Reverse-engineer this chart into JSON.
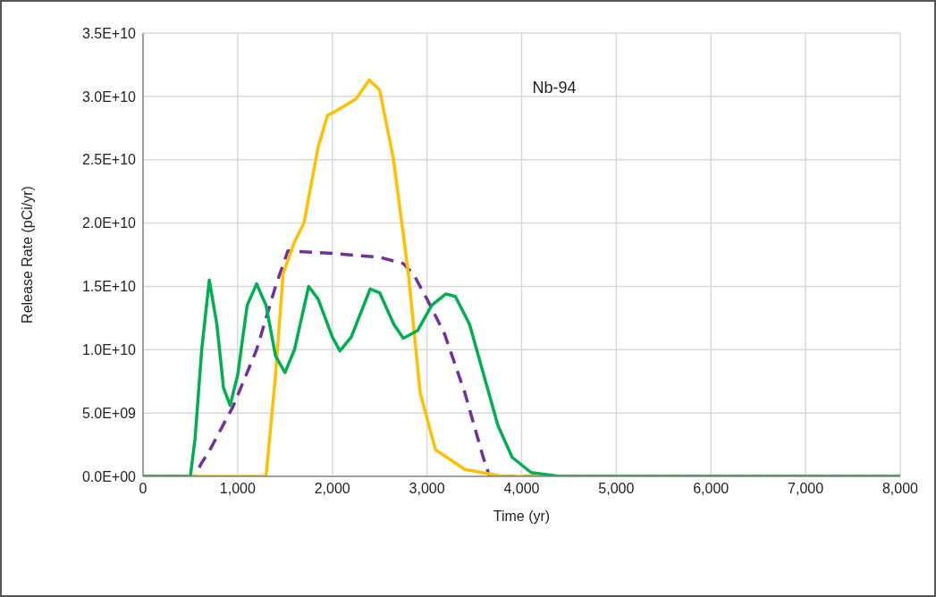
{
  "chart_data": {
    "type": "line",
    "title": "Nb-94",
    "xlabel": "Time (yr)",
    "ylabel": "Release Rate (pCi/yr)",
    "xlim": [
      0,
      8000
    ],
    "xticks": [
      {
        "value": 0,
        "label": "0"
      },
      {
        "value": 1000,
        "label": "1,000"
      },
      {
        "value": 2000,
        "label": "2,000"
      },
      {
        "value": 3000,
        "label": "3,000"
      },
      {
        "value": 4000,
        "label": "4,000"
      },
      {
        "value": 5000,
        "label": "5,000"
      },
      {
        "value": 6000,
        "label": "6,000"
      },
      {
        "value": 7000,
        "label": "7,000"
      },
      {
        "value": 8000,
        "label": "8,000"
      }
    ],
    "ylim": [
      0,
      35000000000.0
    ],
    "yticks": [
      {
        "value": 0,
        "label": "0.0E+00"
      },
      {
        "value": 5000000000.0,
        "label": "5.0E+09"
      },
      {
        "value": 10000000000.0,
        "label": "1.0E+10"
      },
      {
        "value": 15000000000.0,
        "label": "1.5E+10"
      },
      {
        "value": 20000000000.0,
        "label": "2.0E+10"
      },
      {
        "value": 25000000000.0,
        "label": "2.5E+10"
      },
      {
        "value": 30000000000.0,
        "label": "3.0E+10"
      },
      {
        "value": 35000000000.0,
        "label": "3.5E+10"
      }
    ],
    "grid": true,
    "legend": false,
    "marker": "none",
    "series": [
      {
        "color": "#7030a0",
        "line_style": "dashed",
        "x": [
          0,
          550,
          614,
          700,
          950,
          1200,
          1400,
          1530,
          2000,
          2500,
          2750,
          2862,
          3000,
          3183,
          3400,
          3590,
          3660,
          8000
        ],
        "values": [
          0,
          0,
          1000000000.0,
          2000000000.0,
          5500000000.0,
          10000000000.0,
          15000000000.0,
          17800000000.0,
          17600000000.0,
          17300000000.0,
          16800000000.0,
          15900000000.0,
          14000000000.0,
          11300000000.0,
          6600000000.0,
          1600000000.0,
          0,
          0
        ]
      },
      {
        "color": "#ffc000",
        "line_style": "solid",
        "x": [
          0,
          1300,
          1400,
          1480,
          1600,
          1700,
          1850,
          1950,
          2050,
          2250,
          2390,
          2500,
          2645,
          2805,
          2928,
          3090,
          3400,
          3800,
          8000
        ],
        "values": [
          0,
          0,
          8000000000.0,
          16000000000.0,
          18500000000.0,
          20000000000.0,
          26000000000.0,
          28500000000.0,
          28900000000.0,
          29800000000.0,
          31300000000.0,
          30500000000.0,
          25100000000.0,
          15900000000.0,
          6600000000.0,
          2100000000.0,
          550000000.0,
          0,
          0
        ]
      },
      {
        "color": "#00b050",
        "line_style": "solid",
        "x": [
          0,
          500,
          550,
          620,
          700,
          780,
          850,
          920,
          1000,
          1100,
          1200,
          1300,
          1400,
          1500,
          1600,
          1750,
          1850,
          2000,
          2080,
          2200,
          2400,
          2500,
          2650,
          2750,
          2900,
          3050,
          3200,
          3300,
          3450,
          3600,
          3750,
          3900,
          4100,
          4400,
          8000
        ],
        "values": [
          0,
          0,
          3000000000.0,
          10000000000.0,
          15500000000.0,
          12000000000.0,
          7000000000.0,
          5600000000.0,
          8000000000.0,
          13500000000.0,
          15200000000.0,
          13500000000.0,
          9500000000.0,
          8200000000.0,
          10000000000.0,
          15000000000.0,
          14000000000.0,
          11000000000.0,
          9900000000.0,
          11000000000.0,
          14800000000.0,
          14500000000.0,
          12000000000.0,
          10900000000.0,
          11500000000.0,
          13500000000.0,
          14400000000.0,
          14200000000.0,
          12000000000.0,
          8000000000.0,
          4000000000.0,
          1500000000.0,
          300000000.0,
          0,
          0
        ]
      }
    ]
  }
}
